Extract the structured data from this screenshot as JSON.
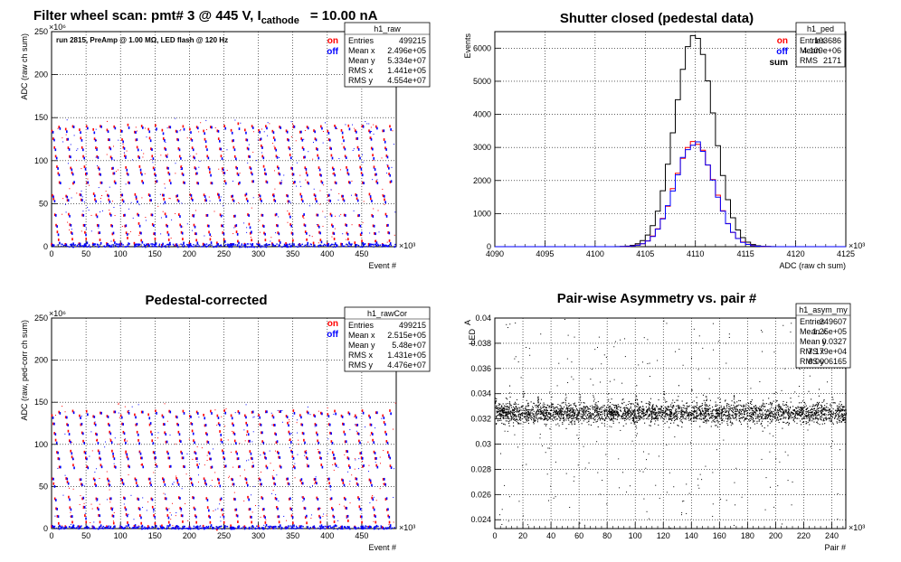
{
  "panels": [
    {
      "title": "Filter wheel scan: pmt#   3 @   445 V, I",
      "title_sub": "cathode",
      "title_tail": "= 10.00 nA",
      "ylabel": "ADC (raw ch sum)",
      "xlabel": "Event #",
      "x_exp": "×10³",
      "y_exp": "×10⁶",
      "annotation": "run 2815, PreAmp @ 1.00 MΩ, LED flash @  120 Hz",
      "legend": [
        {
          "label": "on",
          "color": "#ff0000"
        },
        {
          "label": "off",
          "color": "#0000ff"
        }
      ],
      "stats": {
        "name": "h1_raw",
        "rows": [
          [
            "Entries",
            "499215"
          ],
          [
            "Mean x",
            "2.496e+05"
          ],
          [
            "Mean y",
            "5.334e+07"
          ],
          [
            "RMS x",
            "1.441e+05"
          ],
          [
            "RMS y",
            "4.554e+07"
          ]
        ]
      }
    },
    {
      "title": "Shutter closed (pedestal data)",
      "ylabel": "Events",
      "xlabel": "ADC (raw ch sum)",
      "x_exp": "×10³",
      "legend": [
        {
          "label": "on",
          "color": "#ff0000"
        },
        {
          "label": "off",
          "color": "#0000ff"
        },
        {
          "label": "sum",
          "color": "#000000"
        }
      ],
      "stats": {
        "name": "h1_ped",
        "rows": [
          [
            "Entries",
            "103686"
          ],
          [
            "Mean",
            "4.109e+06"
          ],
          [
            "RMS",
            "2171"
          ]
        ]
      }
    },
    {
      "title": "Pedestal-corrected",
      "ylabel": "ADC (raw, ped-corr ch sum)",
      "xlabel": "Event #",
      "x_exp": "×10³",
      "y_exp": "×10⁶",
      "legend": [
        {
          "label": "on",
          "color": "#ff0000"
        },
        {
          "label": "off",
          "color": "#0000ff"
        }
      ],
      "stats": {
        "name": "h1_rawCor",
        "rows": [
          [
            "Entries",
            "499215"
          ],
          [
            "Mean x",
            "2.515e+05"
          ],
          [
            "Mean y",
            "5.48e+07"
          ],
          [
            "RMS x",
            "1.431e+05"
          ],
          [
            "RMS y",
            "4.476e+07"
          ]
        ]
      }
    },
    {
      "title": "Pair-wise Asymmetry vs. pair #",
      "ylabel": "A",
      "ylabel_sub": "LED",
      "xlabel": "Pair #",
      "x_exp": "×10³",
      "stats": {
        "name": "h1_asym_my",
        "rows": [
          [
            "Entries",
            "249607"
          ],
          [
            "Mean x",
            "1.25e+05"
          ],
          [
            "Mean y",
            "0.0327"
          ],
          [
            "RMS x",
            "7.179e+04"
          ],
          [
            "RMS y",
            "0.0006165"
          ]
        ]
      }
    }
  ],
  "chart_data": [
    {
      "type": "scatter",
      "title": "Filter wheel scan: pmt#   3 @   445 V, I cathode = 10.00 nA",
      "xlabel": "Event # (×10³)",
      "ylabel": "ADC (raw ch sum) (×10⁶)",
      "xlim": [
        0,
        500
      ],
      "ylim": [
        0,
        250
      ],
      "x_ticks": [
        0,
        50,
        100,
        150,
        200,
        250,
        300,
        350,
        400,
        450
      ],
      "y_ticks": [
        0,
        50,
        100,
        150,
        200,
        250
      ],
      "grid": true,
      "legend_position": "top-right",
      "series": [
        {
          "name": "on",
          "color": "#ff0000",
          "levels": [
            3,
            8,
            16,
            25,
            37,
            55,
            60,
            75,
            85,
            92,
            105,
            115,
            125,
            135,
            140
          ]
        },
        {
          "name": "off",
          "color": "#0000ff",
          "levels": [
            2,
            4,
            15,
            24,
            36,
            53,
            59,
            74,
            84,
            90,
            103,
            113,
            124,
            133,
            138
          ]
        }
      ],
      "period_events": 20,
      "base_band": [
        0,
        5
      ]
    },
    {
      "type": "line",
      "title": "Shutter closed (pedestal data)",
      "xlabel": "ADC (raw ch sum) (×10³)",
      "ylabel": "Events",
      "xlim": [
        4090,
        4125
      ],
      "ylim": [
        0,
        6500
      ],
      "x_ticks": [
        4090,
        4095,
        4100,
        4105,
        4110,
        4115,
        4120,
        4125
      ],
      "y_ticks": [
        0,
        1000,
        2000,
        3000,
        4000,
        5000,
        6000
      ],
      "grid": true,
      "legend_position": "top-right",
      "series": [
        {
          "name": "sum",
          "color": "#000000",
          "mean": 4109.9,
          "sigma": 1.93,
          "peak": 6400
        },
        {
          "name": "on",
          "color": "#ff0000",
          "mean": 4109.9,
          "sigma": 1.93,
          "peak": 3200
        },
        {
          "name": "off",
          "color": "#0000ff",
          "mean": 4109.9,
          "sigma": 1.93,
          "peak": 3150
        }
      ]
    },
    {
      "type": "scatter",
      "title": "Pedestal-corrected",
      "xlabel": "Event # (×10³)",
      "ylabel": "ADC (raw, ped-corr ch sum) (×10⁶)",
      "xlim": [
        0,
        500
      ],
      "ylim": [
        0,
        250
      ],
      "x_ticks": [
        0,
        50,
        100,
        150,
        200,
        250,
        300,
        350,
        400,
        450
      ],
      "y_ticks": [
        0,
        50,
        100,
        150,
        200,
        250
      ],
      "grid": true,
      "legend_position": "top-right",
      "series": [
        {
          "name": "on",
          "color": "#ff0000",
          "levels": [
            2,
            7,
            15,
            24,
            36,
            54,
            59,
            74,
            84,
            91,
            104,
            114,
            124,
            134,
            139
          ]
        },
        {
          "name": "off",
          "color": "#0000ff",
          "levels": [
            1,
            3,
            14,
            23,
            35,
            52,
            58,
            73,
            83,
            89,
            102,
            112,
            123,
            132,
            137
          ]
        }
      ],
      "period_events": 20
    },
    {
      "type": "scatter",
      "title": "Pair-wise Asymmetry vs. pair #",
      "xlabel": "Pair # (×10³)",
      "ylabel": "A LED",
      "xlim": [
        0,
        250
      ],
      "ylim": [
        0.0233,
        0.04
      ],
      "x_ticks": [
        0,
        20,
        40,
        60,
        80,
        100,
        120,
        140,
        160,
        180,
        200,
        220,
        240
      ],
      "y_ticks": [
        0.024,
        0.026,
        0.028,
        0.03,
        0.032,
        0.034,
        0.036,
        0.038,
        0.04
      ],
      "grid": true,
      "series": [
        {
          "name": "",
          "color": "#000000",
          "center": 0.0325,
          "band": [
            0.0315,
            0.0335
          ],
          "spike_period": 10
        }
      ]
    }
  ]
}
